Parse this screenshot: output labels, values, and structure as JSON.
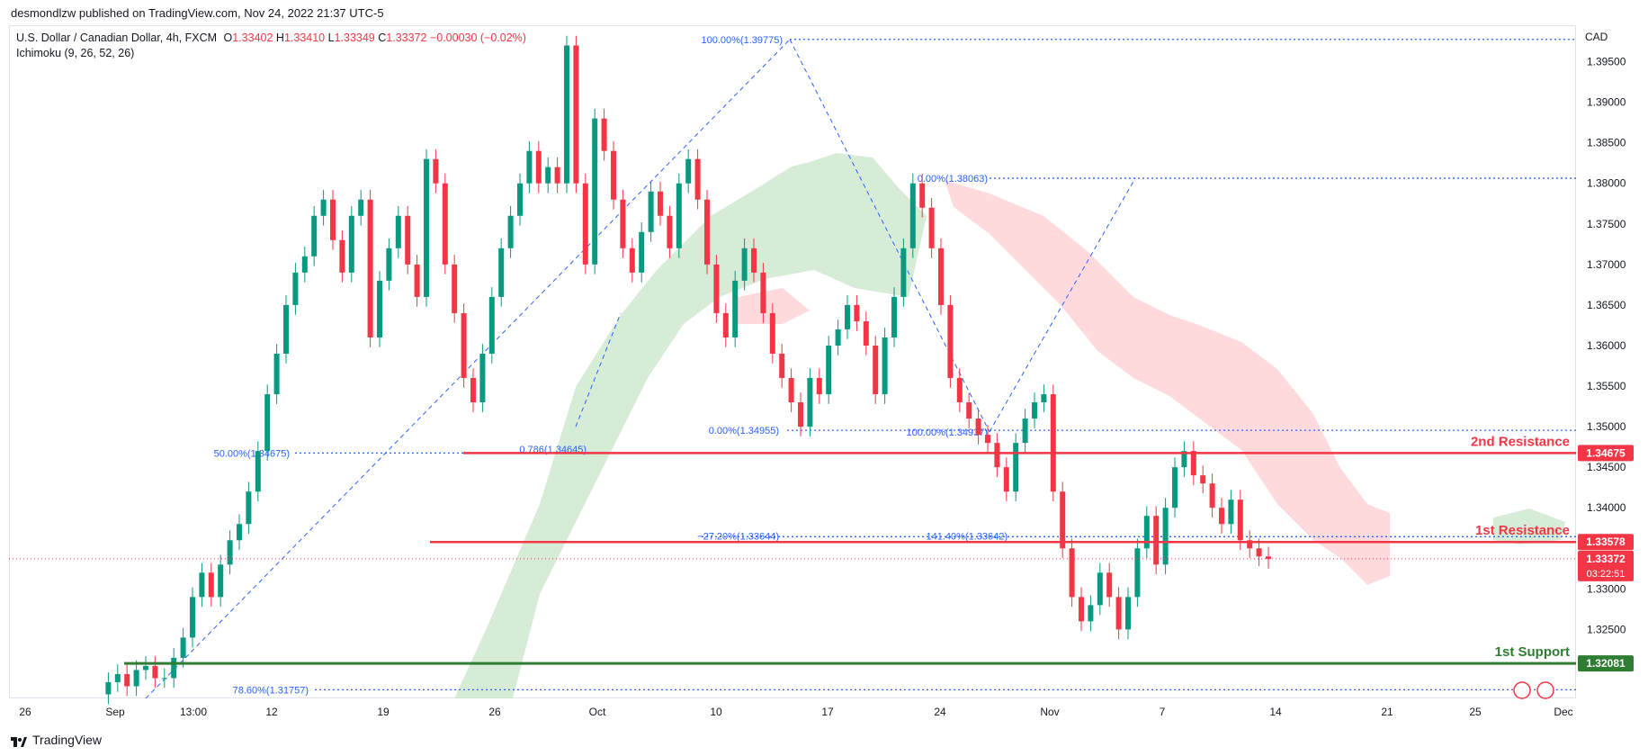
{
  "header": {
    "published": "desmondlzw published on TradingView.com, Nov 24, 2022 21:37 UTC-5"
  },
  "legend": {
    "symbol": "U.S. Dollar / Canadian Dollar, 4h, FXCM",
    "o_label": "O",
    "o_value": "1.33402",
    "h_label": "H",
    "h_value": "1.33410",
    "l_label": "L",
    "l_value": "1.33349",
    "c_label": "C",
    "c_value": "1.33372",
    "change": "−0.00030 (−0.02%)",
    "indicator": "Ichimoku (9, 26, 52, 26)"
  },
  "axis": {
    "currency": "CAD",
    "y_ticks": [
      "1.39500",
      "1.39000",
      "1.38500",
      "1.38000",
      "1.37500",
      "1.37000",
      "1.36500",
      "1.36000",
      "1.35500",
      "1.35000",
      "1.34500",
      "1.34000",
      "1.33000",
      "1.32500"
    ],
    "x_ticks": [
      "26",
      "Sep",
      "13:00",
      "12",
      "19",
      "26",
      "Oct",
      "10",
      "17",
      "24",
      "Nov",
      "7",
      "14",
      "21",
      "25",
      "Dec"
    ]
  },
  "price_tags": {
    "res2": "1.34675",
    "res1": "1.33578",
    "current": "1.33372",
    "countdown": "03:22:51",
    "sup1": "1.32081"
  },
  "levels": {
    "res2_label": "2nd Resistance",
    "res1_label": "1st Resistance",
    "sup1_label": "1st Support"
  },
  "fib_labels": {
    "top": "100.00%(1.39775)",
    "fifty": "50.00%(1.34675)",
    "r786": "0.786(1.34645)",
    "r786b": "78.60%(1.31757)",
    "zero_a": "0.00%(1.38063)",
    "zero_b": "0.00%(1.34955)",
    "hundred_b": "100.00%(1.34937)",
    "ext_a": "−27.20%(1.33644)",
    "ext_b": "141.40%(1.33642)"
  },
  "footer": {
    "brand": "TradingView"
  },
  "colors": {
    "resistance": "#f23645",
    "support": "#2e7d32",
    "fib": "#2962ff",
    "bull": "#089981",
    "bear": "#f23645",
    "cloud_green": "#c8e6c9",
    "cloud_red": "#ffcdd2"
  },
  "chart_data": {
    "type": "candlestick",
    "title": "U.S. Dollar / Canadian Dollar, 4h, FXCM",
    "ylabel": "CAD",
    "ylim": [
      1.3165,
      1.3995
    ],
    "x_ticks": [
      "26",
      "Sep",
      "13:00",
      "12",
      "19",
      "26",
      "Oct",
      "10",
      "17",
      "24",
      "Nov",
      "7",
      "14",
      "21",
      "25",
      "Dec"
    ],
    "horizontal_levels": [
      {
        "name": "2nd Resistance",
        "value": 1.34675
      },
      {
        "name": "1st Resistance",
        "value": 1.33578
      },
      {
        "name": "1st Support",
        "value": 1.32081
      }
    ],
    "current_price": 1.33372,
    "price_path": [
      1.317,
      1.3185,
      1.3195,
      1.318,
      1.32,
      1.3205,
      1.319,
      1.319,
      1.3215,
      1.324,
      1.329,
      1.332,
      1.329,
      1.333,
      1.336,
      1.338,
      1.342,
      1.347,
      1.354,
      1.359,
      1.365,
      1.369,
      1.371,
      1.376,
      1.378,
      1.373,
      1.369,
      1.376,
      1.378,
      1.361,
      1.368,
      1.372,
      1.376,
      1.37,
      1.366,
      1.383,
      1.38,
      1.37,
      1.364,
      1.356,
      1.353,
      1.359,
      1.366,
      1.372,
      1.376,
      1.38,
      1.384,
      1.38,
      1.382,
      1.38,
      1.397,
      1.38,
      1.37,
      1.388,
      1.384,
      1.378,
      1.372,
      1.369,
      1.374,
      1.379,
      1.376,
      1.372,
      1.38,
      1.383,
      1.378,
      1.37,
      1.364,
      1.361,
      1.368,
      1.372,
      1.369,
      1.364,
      1.359,
      1.356,
      1.353,
      1.35,
      1.356,
      1.354,
      1.36,
      1.362,
      1.365,
      1.363,
      1.36,
      1.354,
      1.361,
      1.366,
      1.372,
      1.38,
      1.377,
      1.372,
      1.365,
      1.356,
      1.353,
      1.351,
      1.349,
      1.348,
      1.345,
      1.342,
      1.348,
      1.351,
      1.353,
      1.354,
      1.342,
      1.335,
      1.329,
      1.326,
      1.328,
      1.332,
      1.329,
      1.325,
      1.329,
      1.335,
      1.339,
      1.333,
      1.34,
      1.345,
      1.347,
      1.344,
      1.343,
      1.34,
      1.338,
      1.341,
      1.336,
      1.335,
      1.334,
      1.3337
    ],
    "fibonacci": [
      {
        "label": "100.00%",
        "value": 1.39775
      },
      {
        "label": "50.00%",
        "value": 1.34675
      },
      {
        "label": "0.786",
        "value": 1.34645
      },
      {
        "label": "78.60%",
        "value": 1.31757
      },
      {
        "label": "0.00%",
        "value": 1.38063
      },
      {
        "label": "0.00%",
        "value": 1.34955
      },
      {
        "label": "100.00%",
        "value": 1.34937
      },
      {
        "label": "−27.20%",
        "value": 1.33644
      },
      {
        "label": "141.40%",
        "value": 1.33642
      }
    ]
  }
}
